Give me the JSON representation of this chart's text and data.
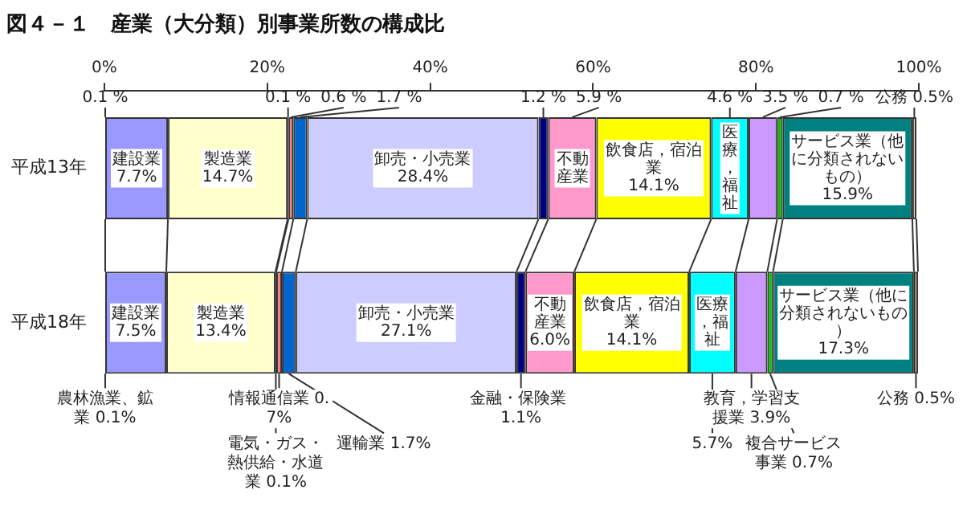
{
  "chart_data": {
    "type": "bar",
    "orientation": "horizontal",
    "stacked": true,
    "title": "図４－１　産業（大分類）別事業所数の構成比",
    "categories": [
      "平成13年",
      "平成18年"
    ],
    "xlim": [
      0,
      100
    ],
    "xticks": [
      {
        "value": 0,
        "label": "0%"
      },
      {
        "value": 20,
        "label": "20%"
      },
      {
        "value": 40,
        "label": "40%"
      },
      {
        "value": 60,
        "label": "60%"
      },
      {
        "value": 80,
        "label": "80%"
      },
      {
        "value": 100,
        "label": "100%"
      }
    ],
    "series": [
      {
        "color": "#333333",
        "values": [
          0.1,
          0.1
        ],
        "value_labels": [
          "0.1 %",
          "農林漁業、鉱業 0.1%"
        ]
      },
      {
        "name": "建設業",
        "color": "#9999ff",
        "values": [
          7.7,
          7.5
        ],
        "value_labels": [
          "7.7%",
          "7.5%"
        ]
      },
      {
        "name": "製造業",
        "color": "#ffffcc",
        "values": [
          14.7,
          13.4
        ],
        "value_labels": [
          "14.7%",
          "13.4%"
        ]
      },
      {
        "color": "#333333",
        "values": [
          0.1,
          0.1
        ],
        "value_labels": [
          "0.1 %",
          "電気・ガス・熱供給・水道業 0.1%"
        ]
      },
      {
        "color": "#ff7c80",
        "values": [
          0.6,
          0.7
        ],
        "value_labels": [
          "0.6 %",
          "情報通信業 0.7%"
        ]
      },
      {
        "color": "#0066cc",
        "values": [
          1.7,
          1.7
        ],
        "value_labels": [
          "1.7 %",
          "運輸業 1.7%"
        ]
      },
      {
        "name": "卸売・小売業",
        "color": "#ccccff",
        "values": [
          28.4,
          27.1
        ],
        "value_labels": [
          "28.4%",
          "27.1%"
        ]
      },
      {
        "color": "#000080",
        "values": [
          1.2,
          1.1
        ],
        "value_labels": [
          "1.2 %",
          "金融・保険業 1.1%"
        ]
      },
      {
        "name": "不動産業",
        "color": "#ff99cc",
        "values": [
          5.9,
          6.0
        ],
        "value_labels": [
          "5.9 %",
          "6.0%"
        ]
      },
      {
        "name": "飲食店，宿泊業",
        "color": "#ffff00",
        "values": [
          14.1,
          14.1
        ],
        "value_labels": [
          "14.1%",
          "14.1%"
        ]
      },
      {
        "name": "医療，福祉",
        "color": "#00ffff",
        "values": [
          4.6,
          5.7
        ],
        "value_labels": [
          "4.6 %",
          "5.7%"
        ]
      },
      {
        "color": "#cc99ff",
        "values": [
          3.5,
          3.9
        ],
        "value_labels": [
          "3.5 %",
          "教育，学習支援業 3.9%"
        ]
      },
      {
        "color": "#00cc00",
        "values": [
          0.7,
          0.7
        ],
        "value_labels": [
          "0.7 %",
          "複合サービス事業 0.7%"
        ]
      },
      {
        "name": "サービス業（他に分類されないもの）",
        "color": "#008080",
        "values": [
          15.9,
          17.3
        ],
        "value_labels": [
          "15.9%",
          "17.3%"
        ]
      },
      {
        "color": "#ffcc99",
        "values": [
          0.5,
          0.5
        ],
        "value_labels": [
          "公務 0.5%",
          "公務 0.5%"
        ]
      }
    ]
  }
}
